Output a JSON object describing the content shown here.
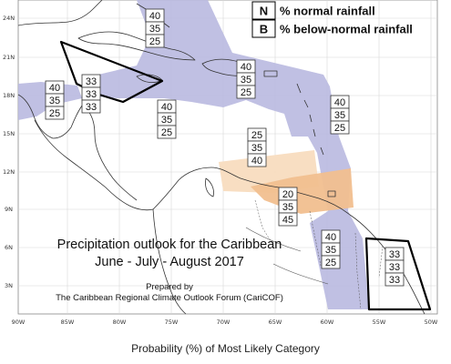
{
  "legend": {
    "items": [
      {
        "key": "N",
        "label": "% normal rainfall"
      },
      {
        "key": "B",
        "label": "% below-normal rainfall"
      }
    ]
  },
  "title": {
    "line1": "Precipitation outlook for the Caribbean",
    "line2": "June - July - August 2017",
    "line3": "Prepared by",
    "line4": "The Caribbean Regional Climate Outlook Forum (CariCOF)"
  },
  "axes": {
    "lon_ticks": [
      "90W",
      "85W",
      "80W",
      "75W",
      "70W",
      "65W",
      "60W",
      "55W",
      "50W"
    ],
    "lat_ticks": [
      "24N",
      "21N",
      "18N",
      "15N",
      "12N",
      "9N",
      "6N",
      "3N"
    ]
  },
  "probability_boxes": [
    {
      "id": "bahamas",
      "values": [
        "40",
        "35",
        "25"
      ]
    },
    {
      "id": "central-america-north",
      "values": [
        "40",
        "35",
        "25"
      ]
    },
    {
      "id": "cuba-area",
      "values": [
        "33",
        "33",
        "33"
      ]
    },
    {
      "id": "jamaica-south",
      "values": [
        "40",
        "35",
        "25"
      ]
    },
    {
      "id": "greater-antilles-east",
      "values": [
        "40",
        "35",
        "25"
      ]
    },
    {
      "id": "atlantic-east",
      "values": [
        "40",
        "35",
        "25"
      ]
    },
    {
      "id": "caribbean-south",
      "values": [
        "25",
        "35",
        "40"
      ]
    },
    {
      "id": "venezuela-coast",
      "values": [
        "20",
        "35",
        "45"
      ]
    },
    {
      "id": "guianas",
      "values": [
        "40",
        "35",
        "25"
      ]
    },
    {
      "id": "french-guiana",
      "values": [
        "33",
        "33",
        "33"
      ]
    }
  ],
  "colors": {
    "normal_zone": "#b9b9e0",
    "above_light_zone": "#f8dcbf",
    "above_zone": "#f1bf8f",
    "coast": "#333333"
  },
  "footer": {
    "text": "Probability (%) of Most Likely Category"
  }
}
